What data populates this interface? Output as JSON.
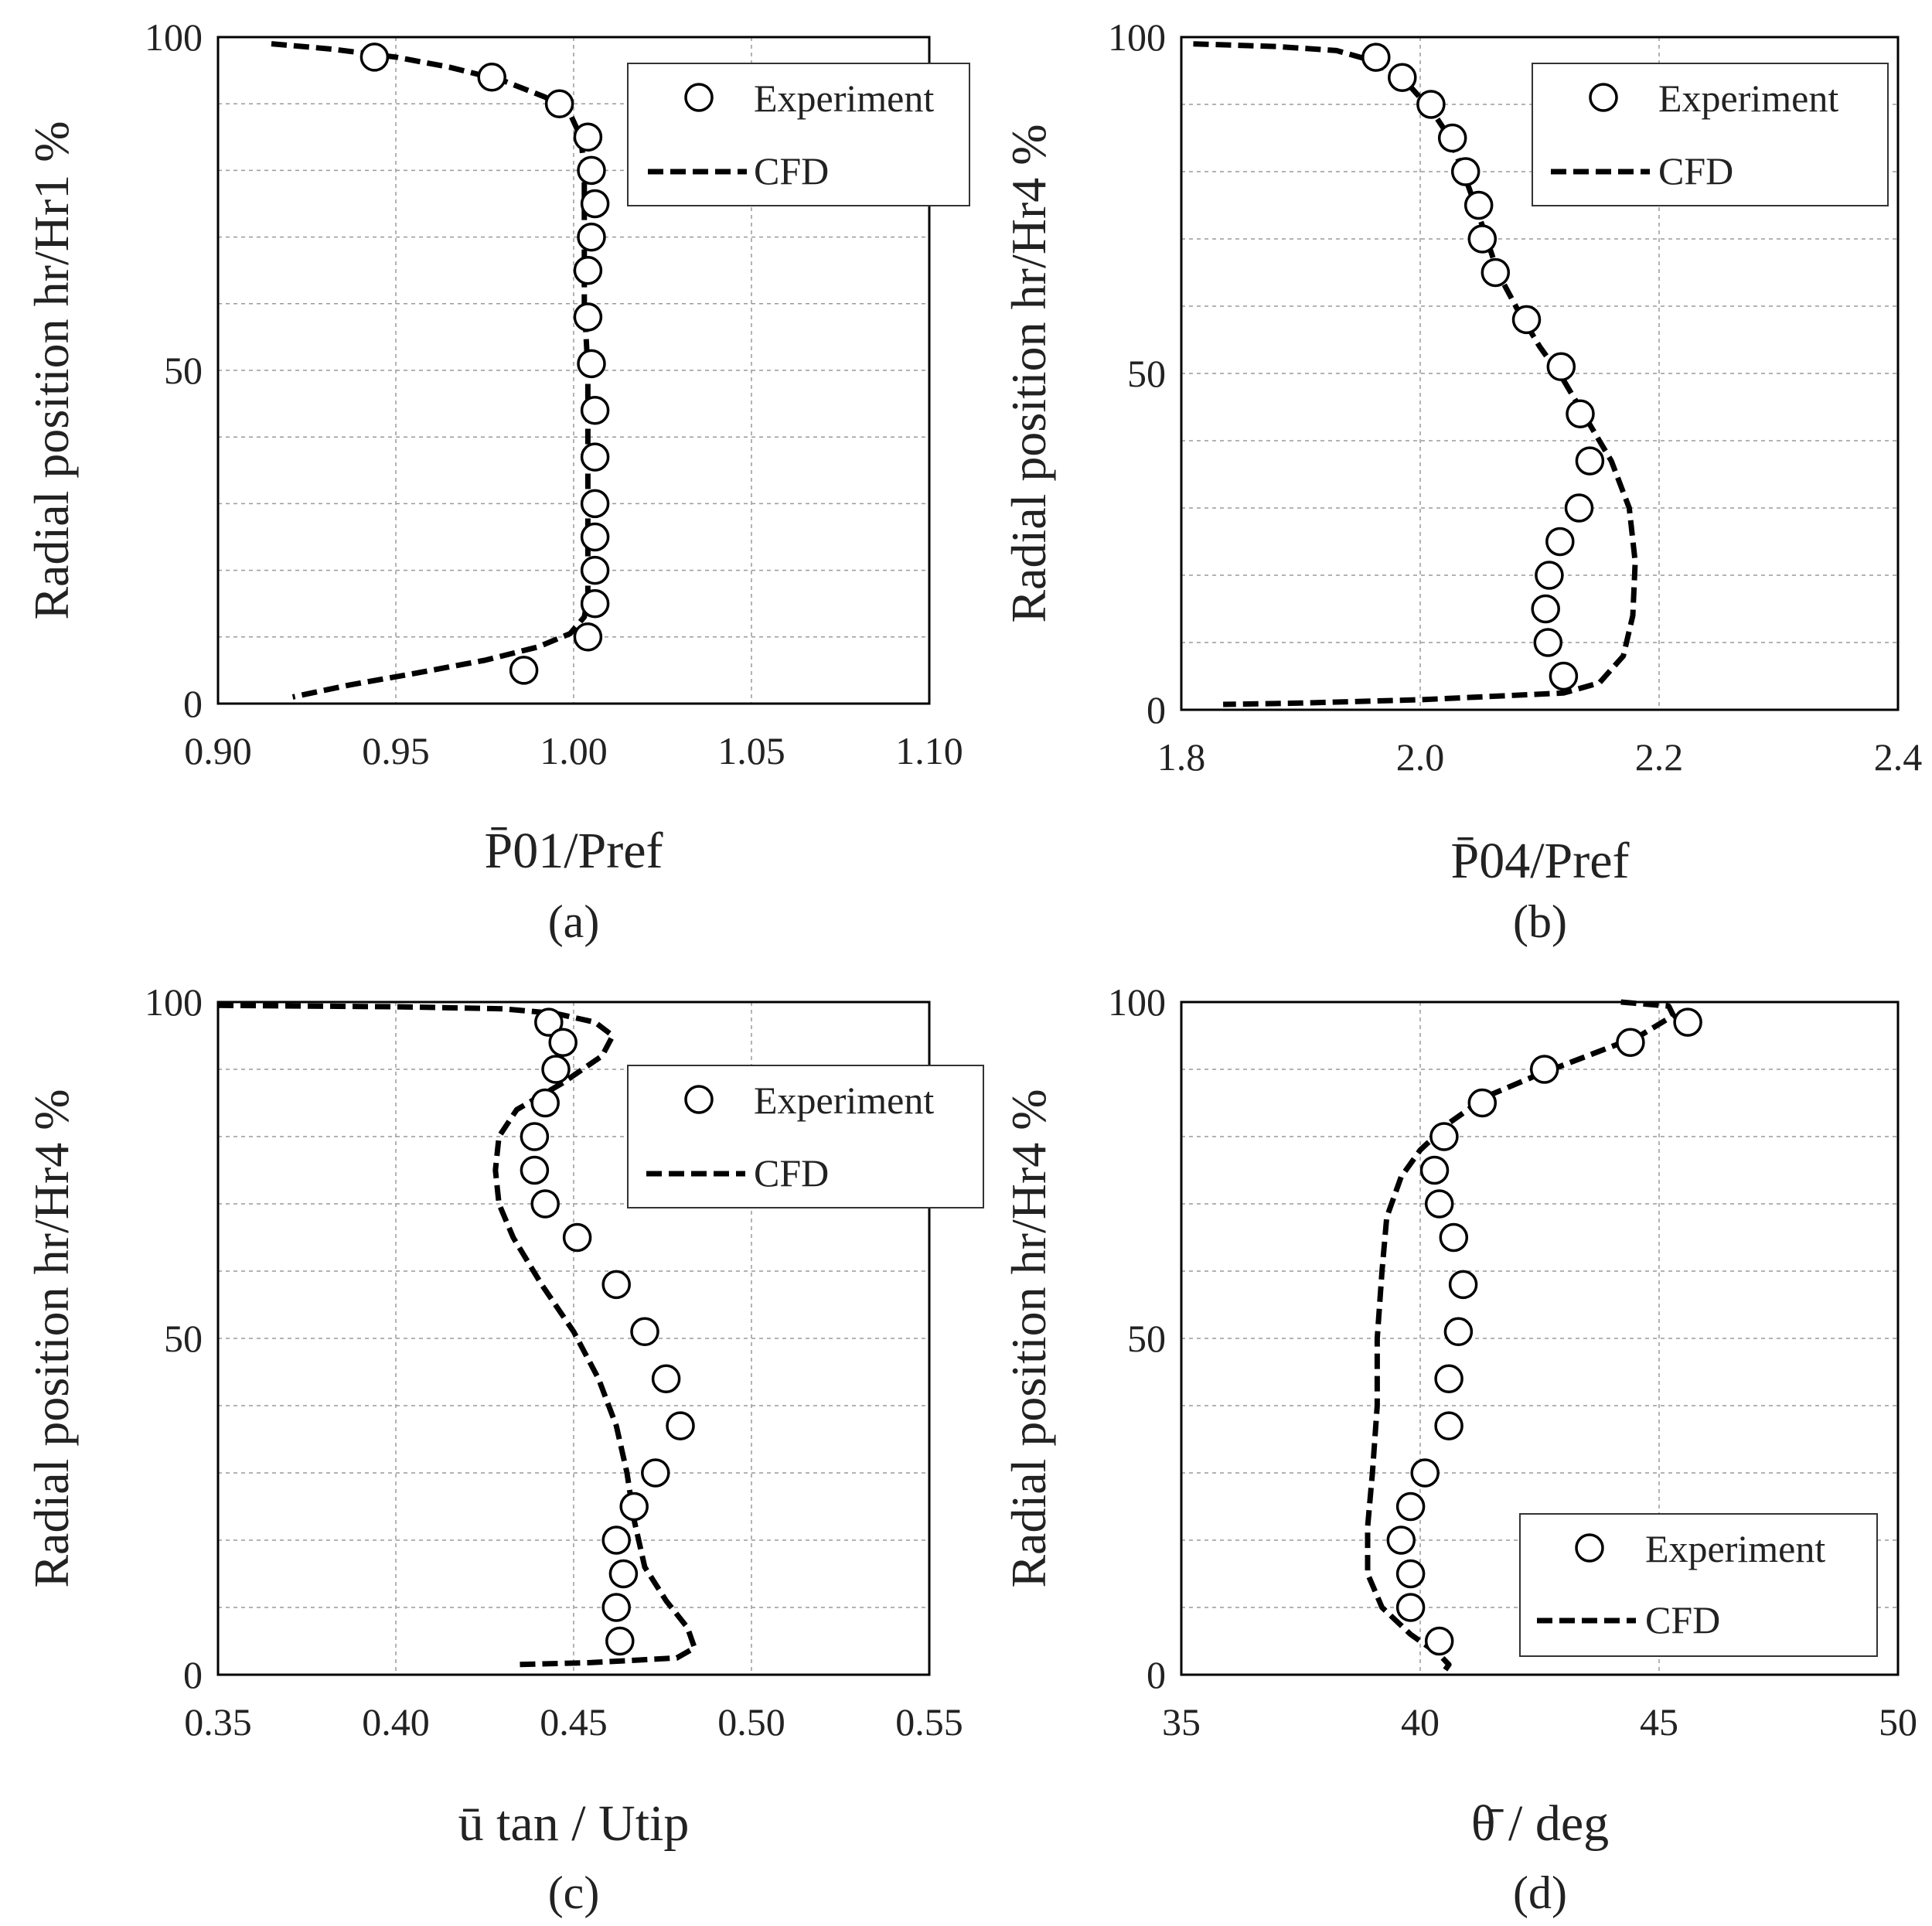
{
  "chart_data": [
    {
      "type": "line",
      "panel": "(a)",
      "xlabel": "P̄01/Pref",
      "ylabel": "Radial position hr/Hr1 %",
      "xlim": [
        0.9,
        1.1
      ],
      "ylim": [
        0,
        100
      ],
      "xticks": [
        "0.90",
        "0.95",
        "1.00",
        "1.05",
        "1.10"
      ],
      "yticks": [
        "0",
        "50",
        "100"
      ],
      "legend": {
        "position": "top-right",
        "entries": [
          "Experiment",
          "CFD"
        ]
      },
      "series": [
        {
          "name": "Experiment",
          "marker": "open-circle",
          "points": [
            [
              0.944,
              97
            ],
            [
              0.977,
              94
            ],
            [
              0.996,
              90
            ],
            [
              1.004,
              85
            ],
            [
              1.005,
              80
            ],
            [
              1.006,
              75
            ],
            [
              1.005,
              70
            ],
            [
              1.004,
              65
            ],
            [
              1.004,
              58
            ],
            [
              1.005,
              51
            ],
            [
              1.006,
              44
            ],
            [
              1.006,
              37
            ],
            [
              1.006,
              30
            ],
            [
              1.006,
              25
            ],
            [
              1.006,
              20
            ],
            [
              1.006,
              15
            ],
            [
              1.004,
              10
            ],
            [
              0.986,
              5
            ]
          ]
        },
        {
          "name": "CFD",
          "style": "dashed",
          "points": [
            [
              0.915,
              99
            ],
            [
              0.932,
              98.2
            ],
            [
              0.95,
              97
            ],
            [
              0.965,
              95.5
            ],
            [
              0.98,
              93.5
            ],
            [
              0.992,
              91
            ],
            [
              0.999,
              88.5
            ],
            [
              1.002,
              85
            ],
            [
              1.003,
              80
            ],
            [
              1.003,
              70
            ],
            [
              1.003,
              60
            ],
            [
              1.004,
              50
            ],
            [
              1.004,
              40
            ],
            [
              1.004,
              30
            ],
            [
              1.004,
              20
            ],
            [
              1.004,
              16
            ],
            [
              1.003,
              13
            ],
            [
              0.999,
              10.5
            ],
            [
              0.99,
              8.5
            ],
            [
              0.975,
              6.5
            ],
            [
              0.955,
              4.5
            ],
            [
              0.937,
              2.8
            ],
            [
              0.921,
              1
            ]
          ]
        }
      ]
    },
    {
      "type": "line",
      "panel": "(b)",
      "xlabel": "P̄04/Pref",
      "ylabel": "Radial position hr/Hr4 %",
      "xlim": [
        1.8,
        2.4
      ],
      "ylim": [
        0,
        100
      ],
      "xticks": [
        "1.8",
        "2.0",
        "2.2",
        "2.4"
      ],
      "yticks": [
        "0",
        "50",
        "100"
      ],
      "legend": {
        "position": "top-right",
        "entries": [
          "Experiment",
          "CFD"
        ]
      },
      "series": [
        {
          "name": "Experiment",
          "marker": "open-circle",
          "points": [
            [
              1.963,
              97
            ],
            [
              1.985,
              94
            ],
            [
              2.009,
              90
            ],
            [
              2.027,
              85
            ],
            [
              2.038,
              80
            ],
            [
              2.049,
              75
            ],
            [
              2.052,
              70
            ],
            [
              2.063,
              65
            ],
            [
              2.089,
              58
            ],
            [
              2.118,
              51
            ],
            [
              2.134,
              44
            ],
            [
              2.142,
              37
            ],
            [
              2.133,
              30
            ],
            [
              2.117,
              25
            ],
            [
              2.108,
              20
            ],
            [
              2.105,
              15
            ],
            [
              2.107,
              10
            ],
            [
              2.12,
              5
            ]
          ]
        },
        {
          "name": "CFD",
          "style": "dashed",
          "points": [
            [
              1.81,
              99
            ],
            [
              1.88,
              98.6
            ],
            [
              1.93,
              98
            ],
            [
              1.96,
              96.5
            ],
            [
              1.99,
              93
            ],
            [
              2.01,
              89
            ],
            [
              2.025,
              85
            ],
            [
              2.04,
              78
            ],
            [
              2.052,
              72
            ],
            [
              2.065,
              65
            ],
            [
              2.083,
              59
            ],
            [
              2.1,
              54
            ],
            [
              2.12,
              49
            ],
            [
              2.14,
              43
            ],
            [
              2.16,
              37
            ],
            [
              2.175,
              30
            ],
            [
              2.18,
              22
            ],
            [
              2.178,
              14
            ],
            [
              2.17,
              8
            ],
            [
              2.15,
              4
            ],
            [
              2.12,
              2.5
            ],
            [
              2.0,
              1.5
            ],
            [
              1.9,
              1.0
            ],
            [
              1.835,
              0.8
            ]
          ]
        }
      ]
    },
    {
      "type": "line",
      "panel": "(c)",
      "xlabel": "ū tan / Utip",
      "ylabel": "Radial position hr/Hr4 %",
      "xlim": [
        0.35,
        0.55
      ],
      "ylim": [
        0,
        100
      ],
      "xticks": [
        "0.35",
        "0.40",
        "0.45",
        "0.50",
        "0.55"
      ],
      "yticks": [
        "0",
        "50",
        "100"
      ],
      "legend": {
        "position": "top-right",
        "entries": [
          "Experiment",
          "CFD"
        ]
      },
      "series": [
        {
          "name": "Experiment",
          "marker": "open-circle",
          "points": [
            [
              0.443,
              97
            ],
            [
              0.447,
              94
            ],
            [
              0.445,
              90
            ],
            [
              0.442,
              85
            ],
            [
              0.439,
              80
            ],
            [
              0.439,
              75
            ],
            [
              0.442,
              70
            ],
            [
              0.451,
              65
            ],
            [
              0.462,
              58
            ],
            [
              0.47,
              51
            ],
            [
              0.476,
              44
            ],
            [
              0.48,
              37
            ],
            [
              0.473,
              30
            ],
            [
              0.467,
              25
            ],
            [
              0.462,
              20
            ],
            [
              0.464,
              15
            ],
            [
              0.462,
              10
            ],
            [
              0.463,
              5
            ]
          ]
        },
        {
          "name": "CFD",
          "style": "dashed",
          "points": [
            [
              0.35,
              99.5
            ],
            [
              0.4,
              99.3
            ],
            [
              0.43,
              99
            ],
            [
              0.445,
              98.3
            ],
            [
              0.456,
              97
            ],
            [
              0.461,
              95
            ],
            [
              0.458,
              92
            ],
            [
              0.447,
              88
            ],
            [
              0.434,
              84
            ],
            [
              0.429,
              80
            ],
            [
              0.428,
              75
            ],
            [
              0.429,
              70
            ],
            [
              0.433,
              65
            ],
            [
              0.441,
              58
            ],
            [
              0.45,
              51
            ],
            [
              0.457,
              44
            ],
            [
              0.462,
              37
            ],
            [
              0.465,
              30
            ],
            [
              0.467,
              23
            ],
            [
              0.47,
              16
            ],
            [
              0.476,
              11
            ],
            [
              0.482,
              7
            ],
            [
              0.484,
              4
            ],
            [
              0.479,
              2.5
            ],
            [
              0.455,
              1.8
            ],
            [
              0.434,
              1.5
            ]
          ]
        }
      ]
    },
    {
      "type": "line",
      "panel": "(d)",
      "xlabel": "θ̄ / deg",
      "ylabel": "Radial position hr/Hr4 %",
      "xlim": [
        35,
        50
      ],
      "ylim": [
        0,
        100
      ],
      "xticks": [
        "35",
        "40",
        "45",
        "50"
      ],
      "yticks": [
        "0",
        "50",
        "100"
      ],
      "legend": {
        "position": "bottom-right",
        "entries": [
          "Experiment",
          "CFD"
        ]
      },
      "series": [
        {
          "name": "Experiment",
          "marker": "open-circle",
          "points": [
            [
              45.6,
              97
            ],
            [
              44.4,
              94
            ],
            [
              42.6,
              90
            ],
            [
              41.3,
              85
            ],
            [
              40.5,
              80
            ],
            [
              40.3,
              75
            ],
            [
              40.4,
              70
            ],
            [
              40.7,
              65
            ],
            [
              40.9,
              58
            ],
            [
              40.8,
              51
            ],
            [
              40.6,
              44
            ],
            [
              40.6,
              37
            ],
            [
              40.1,
              30
            ],
            [
              39.8,
              25
            ],
            [
              39.6,
              20
            ],
            [
              39.8,
              15
            ],
            [
              39.8,
              10
            ],
            [
              40.4,
              5
            ]
          ]
        },
        {
          "name": "CFD",
          "style": "dashed",
          "points": [
            [
              44.2,
              100
            ],
            [
              45.2,
              99.4
            ],
            [
              45.3,
              98
            ],
            [
              44.6,
              95
            ],
            [
              43.5,
              92
            ],
            [
              42.4,
              89
            ],
            [
              41.4,
              86
            ],
            [
              40.6,
              82
            ],
            [
              40.0,
              78
            ],
            [
              39.6,
              74
            ],
            [
              39.3,
              68
            ],
            [
              39.2,
              60
            ],
            [
              39.1,
              50
            ],
            [
              39.1,
              40
            ],
            [
              39.0,
              30
            ],
            [
              38.9,
              22
            ],
            [
              38.9,
              15
            ],
            [
              39.2,
              10
            ],
            [
              39.8,
              6
            ],
            [
              40.4,
              3
            ],
            [
              40.6,
              1.5
            ],
            [
              40.5,
              0.5
            ]
          ]
        }
      ]
    }
  ]
}
